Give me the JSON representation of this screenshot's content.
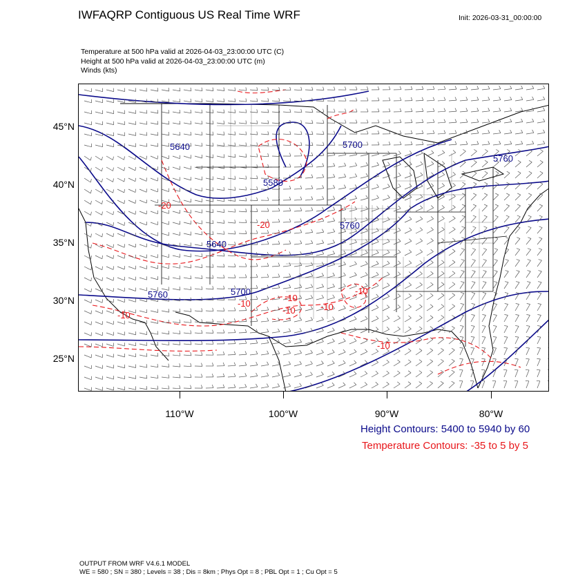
{
  "header": {
    "title": "IWFAQRP Contiguous US Real Time WRF",
    "init": "Init: 2026-03-31_00:00:00"
  },
  "fields": [
    "Temperature at 500 hPa valid at 2026-04-03_23:00:00 UTC   (C)",
    "Height at 500 hPa valid at 2026-04-03_23:00:00 UTC   (m)",
    "Winds   (kts)"
  ],
  "map": {
    "lat_labels": [
      "45°N",
      "40°N",
      "35°N",
      "30°N",
      "25°N"
    ],
    "lon_labels": [
      "110°W",
      "100°W",
      "90°W",
      "80°W"
    ],
    "height_labels": [
      "5640",
      "5580",
      "5700",
      "5760",
      "5640",
      "5760",
      "5760",
      "5700"
    ],
    "temp_labels": [
      "-20",
      "-20",
      "-10",
      "-10",
      "-10",
      "-10",
      "-10",
      "-10",
      "-10"
    ],
    "colors": {
      "height": "#0a0a8a",
      "temperature": "#e8161a",
      "wind": "#555555",
      "boundaries": "#000000"
    }
  },
  "legend": {
    "height": "Height Contours: 5400 to 5940 by 60",
    "temperature": "Temperature Contours: -35 to 5 by 5"
  },
  "footer": {
    "line1": "OUTPUT FROM WRF V4.6.1 MODEL",
    "line2": "WE = 580 ; SN = 380 ; Levels = 38 ; Dis = 8km ; Phys Opt = 8 ; PBL Opt = 1 ; Cu Opt = 5"
  }
}
